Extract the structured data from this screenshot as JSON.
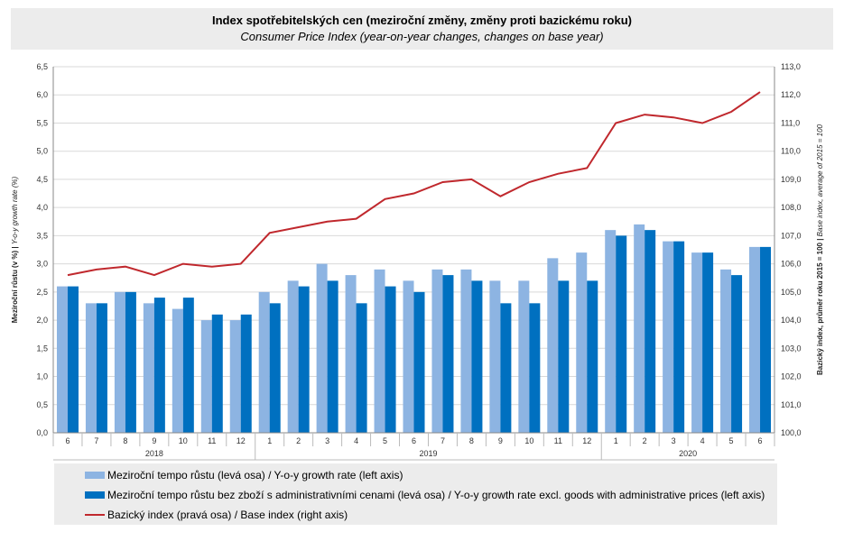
{
  "title": "Index spotřebitelských cen (meziroční změny, změny proti bazickému roku)",
  "subtitle": "Consumer Price Index (year-on-year changes, changes on base year)",
  "colors": {
    "bar_light": "#8db4e2",
    "bar_dark": "#0070c0",
    "line": "#c0282d"
  },
  "chart_data": {
    "type": "bar",
    "categories": [
      "6",
      "7",
      "8",
      "9",
      "10",
      "11",
      "12",
      "1",
      "2",
      "3",
      "4",
      "5",
      "6",
      "7",
      "8",
      "9",
      "10",
      "11",
      "12",
      "1",
      "2",
      "3",
      "4",
      "5",
      "6"
    ],
    "year_groups": [
      {
        "label": "2018",
        "start": 0,
        "end": 6
      },
      {
        "label": "2019",
        "start": 7,
        "end": 18
      },
      {
        "label": "2020",
        "start": 19,
        "end": 24
      }
    ],
    "series": [
      {
        "name": "Meziroční tempo růstu (levá osa) / Y-o-y growth rate (left axis)",
        "type": "bar",
        "axis": "left",
        "values": [
          2.6,
          2.3,
          2.5,
          2.3,
          2.2,
          2.0,
          2.0,
          2.5,
          2.7,
          3.0,
          2.8,
          2.9,
          2.7,
          2.9,
          2.9,
          2.7,
          2.7,
          3.1,
          3.2,
          3.6,
          3.7,
          3.4,
          3.2,
          2.9,
          3.3
        ]
      },
      {
        "name": "Meziroční tempo růstu bez zboží s administrativními cenami (levá osa) / Y-o-y growth rate excl. goods with administrative prices (left axis)",
        "type": "bar",
        "axis": "left",
        "values": [
          2.6,
          2.3,
          2.5,
          2.4,
          2.4,
          2.1,
          2.1,
          2.3,
          2.6,
          2.7,
          2.3,
          2.6,
          2.5,
          2.8,
          2.7,
          2.3,
          2.3,
          2.7,
          2.7,
          3.5,
          3.6,
          3.4,
          3.2,
          2.8,
          3.3
        ]
      },
      {
        "name": "Bazický index (pravá osa) / Base index (right axis)",
        "type": "line",
        "axis": "right",
        "values": [
          105.6,
          105.8,
          105.9,
          105.6,
          106.0,
          105.9,
          106.0,
          107.1,
          107.3,
          107.5,
          107.6,
          108.3,
          108.5,
          108.9,
          109.0,
          108.4,
          108.9,
          109.2,
          109.4,
          111.0,
          111.3,
          111.2,
          111.0,
          111.4,
          112.1
        ]
      }
    ],
    "ylabel_left": "Meziroční růstu (v %) | Y-o-y growth rate (%)",
    "ylabel_left_bold": "Meziroční růstu (v %) |",
    "ylabel_left_italic": "Y-o-y growth rate (%)",
    "ylabel_right_bold": "Bazický index, průměr roku 2015 = 100 |",
    "ylabel_right_italic": "Base index, average of 2015 = 100",
    "ylim_left": [
      0,
      6.5
    ],
    "ylim_right": [
      100,
      113
    ],
    "yticks_left": [
      "0,0",
      "0,5",
      "1,0",
      "1,5",
      "2,0",
      "2,5",
      "3,0",
      "3,5",
      "4,0",
      "4,5",
      "5,0",
      "5,5",
      "6,0",
      "6,5"
    ],
    "yticks_right": [
      "100,0",
      "101,0",
      "102,0",
      "103,0",
      "104,0",
      "105,0",
      "106,0",
      "107,0",
      "108,0",
      "109,0",
      "110,0",
      "111,0",
      "112,0",
      "113,0"
    ],
    "grid": true,
    "legend_position": "bottom"
  }
}
